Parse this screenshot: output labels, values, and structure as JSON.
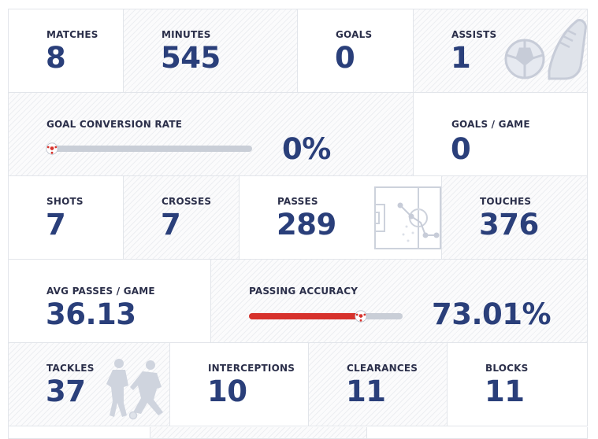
{
  "rows": [
    {
      "cells": [
        {
          "label": "MATCHES",
          "value": "8"
        },
        {
          "label": "MINUTES",
          "value": "545"
        },
        {
          "label": "GOALS",
          "value": "0"
        },
        {
          "label": "ASSISTS",
          "value": "1",
          "icon": "ball-and-boot-icon"
        }
      ]
    },
    {
      "cells": [
        {
          "label": "GOAL CONVERSION RATE",
          "value": "0%",
          "progress": 0
        },
        {
          "label": "GOALS / GAME",
          "value": "0"
        }
      ]
    },
    {
      "cells": [
        {
          "label": "SHOTS",
          "value": "7"
        },
        {
          "label": "CROSSES",
          "value": "7"
        },
        {
          "label": "PASSES",
          "value": "289",
          "icon": "pitch-pass-map-icon"
        },
        {
          "label": "TOUCHES",
          "value": "376"
        }
      ]
    },
    {
      "cells": [
        {
          "label": "AVG PASSES / GAME",
          "value": "36.13"
        },
        {
          "label": "PASSING ACCURACY",
          "value": "73.01%",
          "progress": 0.7301
        }
      ]
    },
    {
      "cells": [
        {
          "label": "TACKLES",
          "value": "37",
          "icon": "players-tackling-icon"
        },
        {
          "label": "INTERCEPTIONS",
          "value": "10"
        },
        {
          "label": "CLEARANCES",
          "value": "11"
        },
        {
          "label": "BLOCKS",
          "value": "11"
        }
      ]
    }
  ],
  "colors": {
    "value_text": "#2a3f7a",
    "label_text": "#2b2f4a",
    "accent_red": "#d7322c",
    "track_gray": "#c9ced7",
    "grid_line": "#e2e5ea"
  }
}
